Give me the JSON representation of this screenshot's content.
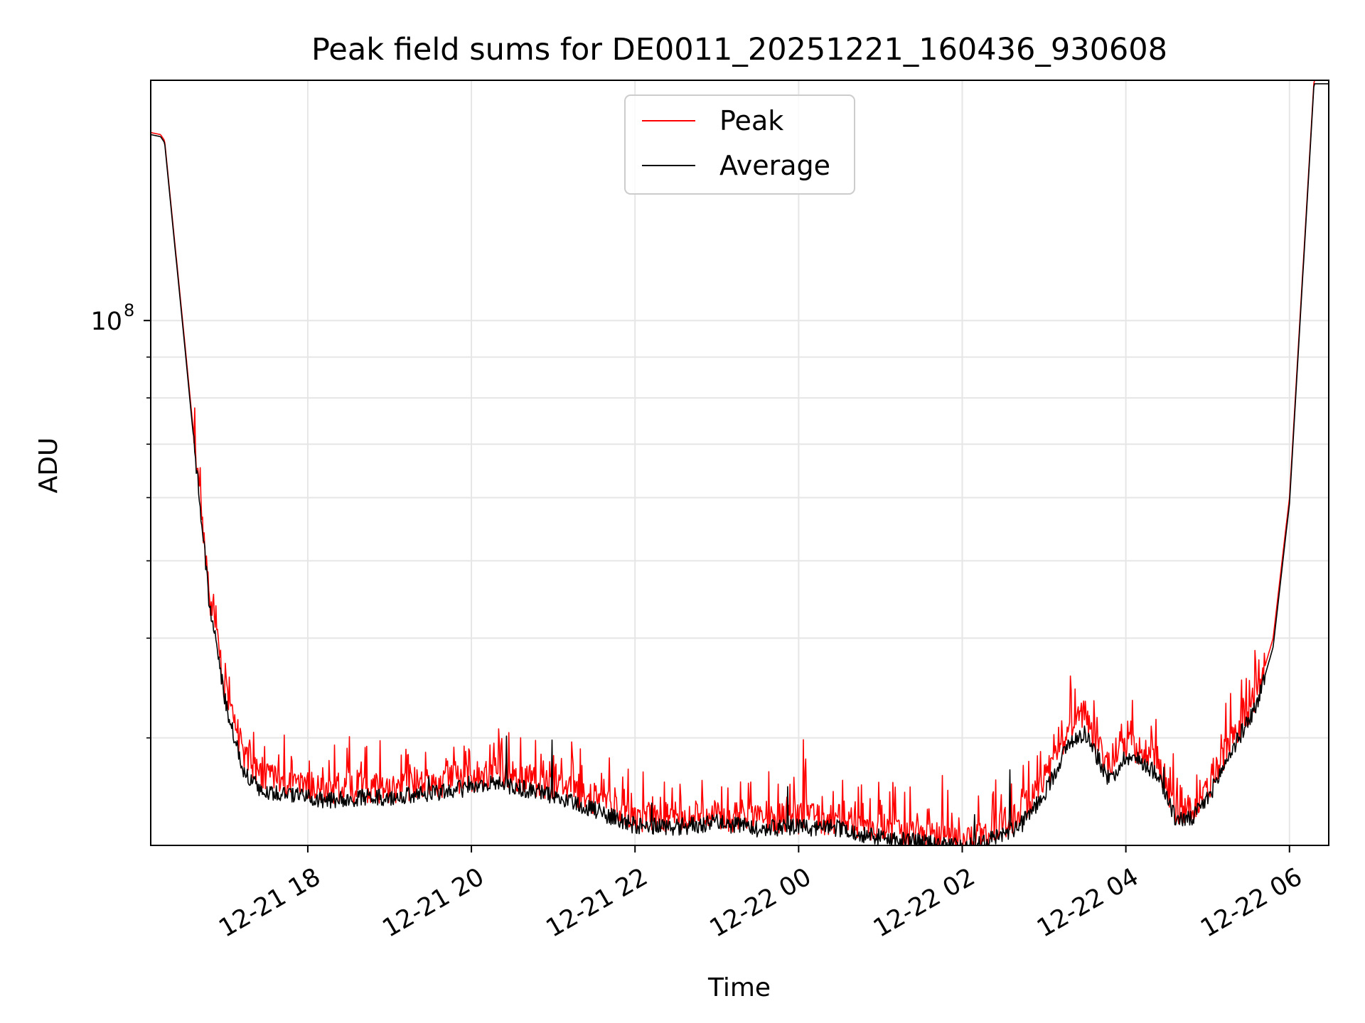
{
  "chart_data": {
    "type": "line",
    "title": "Peak field sums for DE0011_20251221_160436_930608",
    "xlabel": "Time",
    "ylabel": "ADU",
    "yscale": "log",
    "ylim": [
      22000000,
      200000000
    ],
    "xlim": [
      "2025-12-21 16:04",
      "2025-12-22 06:30"
    ],
    "grid": true,
    "legend_position": "top-center",
    "x_ticks": [
      "12-21 18",
      "12-21 20",
      "12-21 22",
      "12-22 00",
      "12-22 02",
      "12-22 04",
      "12-22 06"
    ],
    "x_tick_hours": [
      18,
      20,
      22,
      24,
      26,
      28,
      30
    ],
    "y_major_tick": {
      "base": "10",
      "exponent": "8",
      "value": 100000000
    },
    "y_minor_ticks": [
      30000000,
      40000000,
      50000000,
      60000000,
      70000000,
      80000000,
      90000000
    ],
    "series": [
      {
        "name": "Peak",
        "color": "#ff0000",
        "noise": 0.045,
        "x_hours": [
          16.08,
          16.2,
          16.25,
          16.5,
          16.8,
          17.0,
          17.2,
          17.4,
          17.6,
          18.0,
          18.2,
          18.4,
          19.0,
          19.5,
          20.0,
          20.3,
          20.8,
          21.5,
          22.0,
          22.5,
          23.0,
          23.5,
          24.0,
          24.5,
          25.0,
          25.5,
          26.0,
          26.3,
          26.7,
          27.0,
          27.3,
          27.5,
          27.8,
          28.0,
          28.2,
          28.4,
          28.6,
          28.8,
          29.0,
          29.3,
          29.6,
          29.8,
          30.0,
          30.3
        ],
        "values": [
          172000000,
          171000000,
          168000000,
          93000000,
          45000000,
          34000000,
          29000000,
          27000000,
          26500000,
          26200000,
          25800000,
          26000000,
          26000000,
          26300000,
          26800000,
          27200000,
          26500000,
          25200000,
          24000000,
          23800000,
          24100000,
          23700000,
          23800000,
          23700000,
          23100000,
          22700000,
          22300000,
          22900000,
          24000000,
          26500000,
          31000000,
          32000000,
          27500000,
          29500000,
          29000000,
          28000000,
          24500000,
          24400000,
          26000000,
          30000000,
          34000000,
          40000000,
          60000000,
          200000000
        ]
      },
      {
        "name": "Average",
        "color": "#000000",
        "noise": 0.025,
        "x_hours": [
          16.08,
          16.2,
          16.25,
          16.5,
          16.8,
          17.0,
          17.2,
          17.4,
          17.6,
          18.0,
          18.2,
          18.4,
          19.0,
          19.5,
          20.0,
          20.3,
          20.8,
          21.5,
          22.0,
          22.5,
          23.0,
          23.5,
          24.0,
          24.5,
          25.0,
          25.5,
          26.0,
          26.3,
          26.7,
          27.0,
          27.3,
          27.5,
          27.8,
          28.0,
          28.2,
          28.4,
          28.6,
          28.8,
          29.0,
          29.3,
          29.6,
          29.8,
          30.0,
          30.3
        ],
        "values": [
          171000000,
          170000000,
          167000000,
          92000000,
          44000000,
          33000000,
          27500000,
          26000000,
          25600000,
          25300000,
          25000000,
          25200000,
          25300000,
          25600000,
          26000000,
          26400000,
          25700000,
          24400000,
          23300000,
          23200000,
          23500000,
          23100000,
          23200000,
          23100000,
          22500000,
          22200000,
          21900000,
          22300000,
          23200000,
          25500000,
          29500000,
          30500000,
          26500000,
          28500000,
          28000000,
          27000000,
          23800000,
          23700000,
          25200000,
          29000000,
          33000000,
          39000000,
          59000000,
          198000000
        ]
      }
    ]
  }
}
